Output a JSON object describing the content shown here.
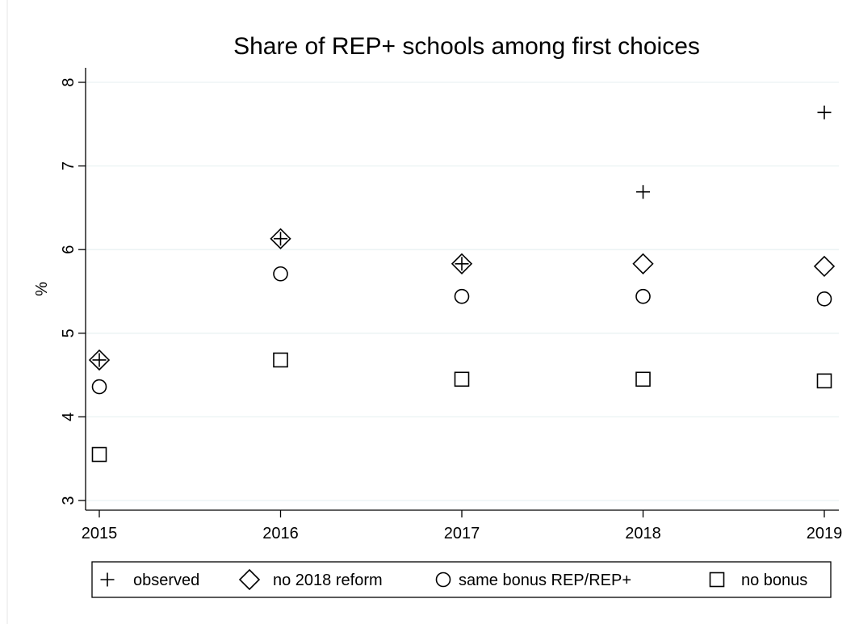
{
  "chart_data": {
    "type": "scatter",
    "title": "Share of REP+ schools among first choices",
    "xlabel": "",
    "ylabel": "%",
    "x": [
      2015,
      2016,
      2017,
      2018,
      2019
    ],
    "xlim": [
      2015,
      2019
    ],
    "ylim": [
      3,
      8
    ],
    "yticks": [
      3,
      4,
      5,
      6,
      7,
      8
    ],
    "grid": true,
    "legend_position": "bottom",
    "series": [
      {
        "name": "observed",
        "marker": "plus",
        "values": [
          4.68,
          6.13,
          5.83,
          6.69,
          7.64
        ]
      },
      {
        "name": "no 2018 reform",
        "marker": "diamond",
        "values": [
          4.68,
          6.13,
          5.83,
          5.83,
          5.8
        ]
      },
      {
        "name": "same bonus REP/REP+",
        "marker": "circle",
        "values": [
          4.36,
          5.71,
          5.44,
          5.44,
          5.41
        ]
      },
      {
        "name": "no bonus",
        "marker": "square",
        "values": [
          3.55,
          4.68,
          4.45,
          4.45,
          4.43
        ]
      }
    ]
  }
}
